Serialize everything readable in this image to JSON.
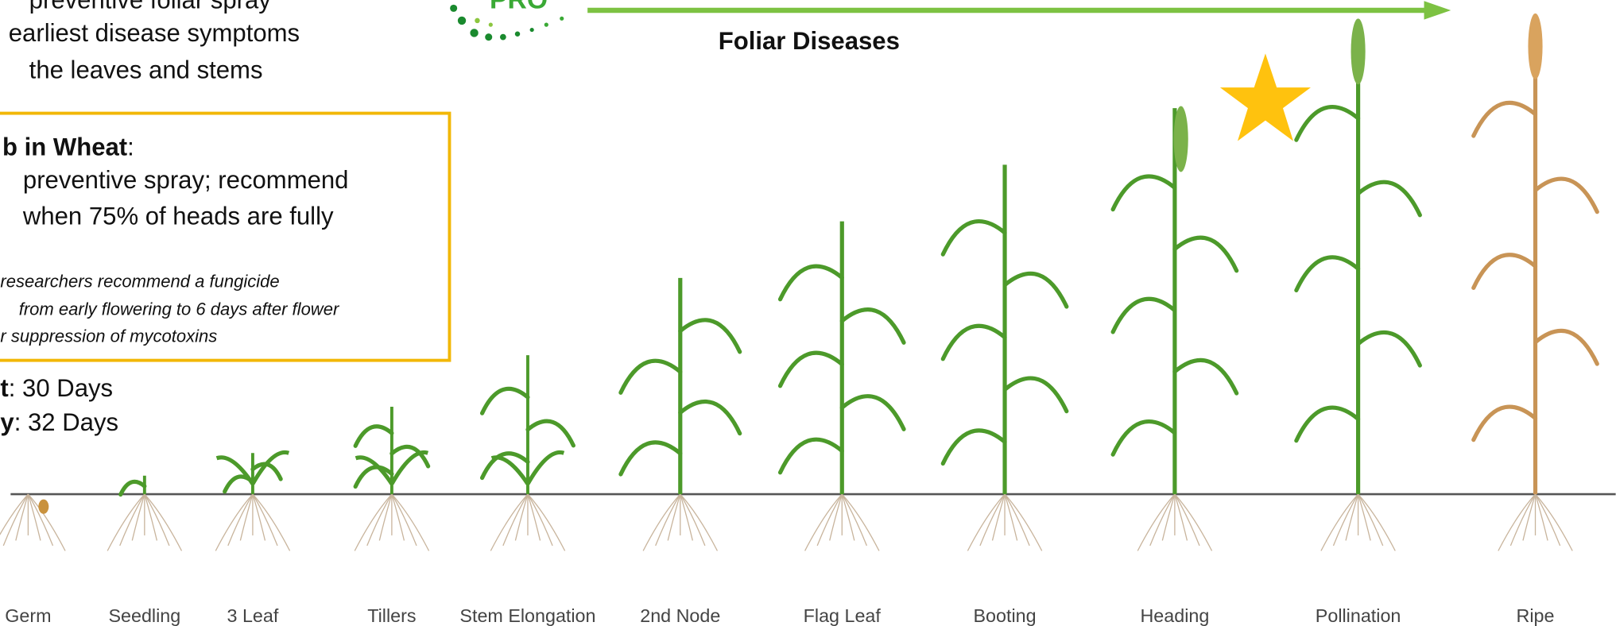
{
  "intro_lines": [
    "preventive foliar spray",
    "earliest disease symptoms",
    "the leaves and stems"
  ],
  "logo": "PRO",
  "arrow_label": "Foliar Diseases",
  "box": {
    "heading": "b in Wheat",
    "heading_tail": ":",
    "lines": [
      "preventive spray; recommend",
      "when 75% of heads are fully"
    ],
    "notes": [
      "researchers recommend a fungicide",
      "from early flowering to 6 days after flower",
      "r suppression of mycotoxins"
    ]
  },
  "intervals": [
    {
      "label": "t",
      "text": ": 30 Days"
    },
    {
      "label": "y",
      "text": ": 32 Days"
    }
  ],
  "stages": [
    "Germ",
    "Seedling",
    "3 Leaf",
    "Tillers",
    "Stem Elongation",
    "2nd Node",
    "Flag Leaf",
    "Booting",
    "Heading",
    "Pollination",
    "Ripe"
  ]
}
